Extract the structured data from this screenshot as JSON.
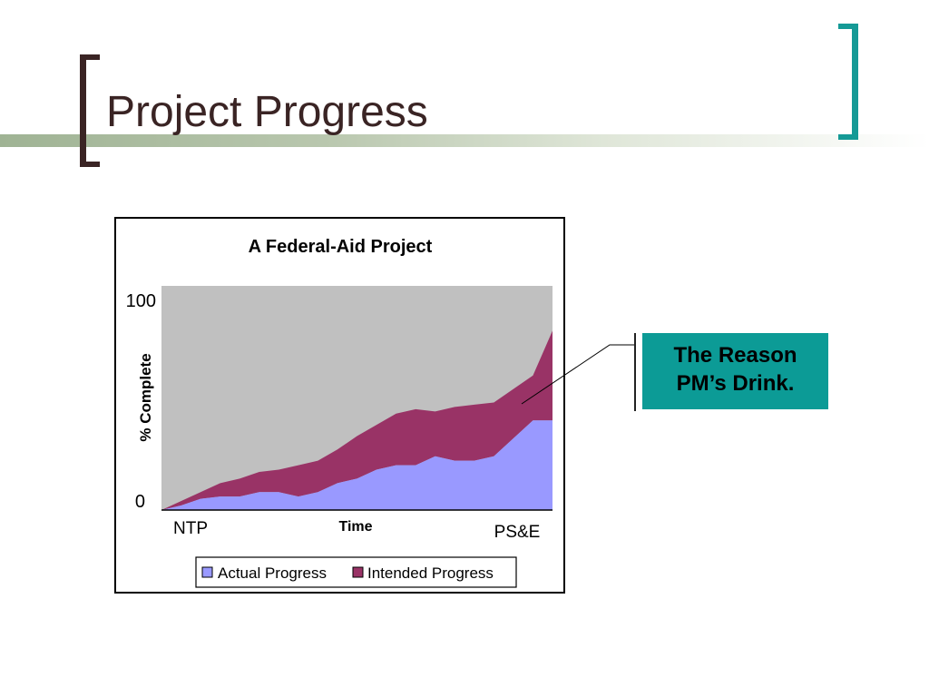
{
  "slide": {
    "title": "Project Progress"
  },
  "callout": {
    "line1": "The Reason",
    "line2": "PM’s Drink."
  },
  "chart_data": {
    "type": "area",
    "title": "A Federal-Aid Project",
    "xlabel": "Time",
    "ylabel": "% Complete",
    "x_tick_labels": [
      "NTP",
      "PS&E"
    ],
    "y_tick_labels": [
      "100",
      "0"
    ],
    "ylim": [
      0,
      100
    ],
    "stacked": true,
    "x": [
      0,
      1,
      2,
      3,
      4,
      5,
      6,
      7,
      8,
      9,
      10,
      11,
      12,
      13,
      14,
      15,
      16,
      17,
      18,
      19,
      20
    ],
    "series": [
      {
        "name": "Actual Progress",
        "color": "#9999ff",
        "values": [
          0,
          2,
          5,
          6,
          6,
          8,
          8,
          6,
          8,
          12,
          14,
          18,
          20,
          20,
          24,
          22,
          22,
          24,
          32,
          40,
          40
        ]
      },
      {
        "name": "Intended Progress",
        "color": "#993366",
        "values": [
          0,
          2,
          3,
          6,
          8,
          9,
          10,
          14,
          14,
          15,
          19,
          20,
          23,
          25,
          20,
          24,
          25,
          24,
          22,
          20,
          40
        ]
      }
    ],
    "legend_position": "bottom",
    "plot_background": "#c0c0c0"
  }
}
